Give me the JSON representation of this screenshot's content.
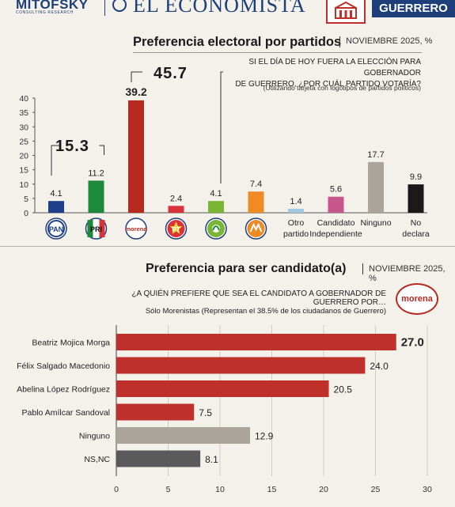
{
  "header": {
    "left_brand": "MITOFSKY",
    "left_brand_sub": "CONSULTING RESEARCH",
    "center_brand": "EL ECONOMISTA",
    "region": "GUERRERO",
    "brand_color": "#1d3f7a",
    "accent_color": "#c0302a"
  },
  "chart1": {
    "title": "Preferencia electoral por partidos",
    "subtitle": "NOVIEMBRE 2025, %",
    "question_line1": "SI EL DÍA DE HOY FUERA LA ELECCIÓN PARA GOBERNADOR",
    "question_line2": "DE GUERRERO, ¿POR CUÁL PARTIDO VOTARÍA?",
    "note": "(Utilizando tarjeta con logotipos de partidos políticos)",
    "alliance_left_total": "15.3",
    "alliance_right_total": "45.7"
  },
  "chart2": {
    "title": "Preferencia para ser candidato(a)",
    "subtitle": "NOVIEMBRE 2025, %",
    "question": "¿A QUIÉN PREFIERE QUE SEA EL CANDIDATO A GOBERNADOR DE GUERRERO POR…",
    "note": "Sólo Morenistas (Representan el 38.5% de los ciudadanos de Guerrero)",
    "party_logo_text": "morena"
  },
  "chart_data": [
    {
      "type": "bar",
      "orientation": "vertical",
      "title": "Preferencia electoral por partidos",
      "ylim": [
        0,
        40
      ],
      "yticks": [
        0,
        5,
        10,
        15,
        20,
        25,
        30,
        35,
        40
      ],
      "grid": false,
      "categories": [
        {
          "label": "PAN",
          "logo": "pan-logo",
          "value": 4.1,
          "color": "#1f3f8c"
        },
        {
          "label": "PRI",
          "logo": "pri-logo",
          "value": 11.2,
          "color": "#1c8a3a"
        },
        {
          "label": "morena",
          "logo": "morena-logo",
          "value": 39.2,
          "color": "#b5291f"
        },
        {
          "label": "PT",
          "logo": "pt-logo",
          "value": 2.4,
          "color": "#d8323a"
        },
        {
          "label": "PVEM",
          "logo": "pvem-logo",
          "value": 4.1,
          "color": "#7ab534"
        },
        {
          "label": "MC",
          "logo": "mc-logo",
          "value": 7.4,
          "color": "#f08a24"
        },
        {
          "label": "Otro partido",
          "value": 1.4,
          "color": "#9ec9e0"
        },
        {
          "label": "Candidato Independiente",
          "value": 5.6,
          "color": "#c9568b"
        },
        {
          "label": "Ninguno",
          "value": 17.7,
          "color": "#aaa49a"
        },
        {
          "label": "No declara",
          "value": 9.9,
          "color": "#1a1a1a"
        }
      ]
    },
    {
      "type": "bar",
      "orientation": "horizontal",
      "title": "Preferencia para ser candidato(a)",
      "xlim": [
        0,
        30
      ],
      "xticks": [
        0,
        5,
        10,
        15,
        20,
        25,
        30
      ],
      "grid": true,
      "categories": [
        {
          "label": "Beatriz Mojica Morga",
          "value": 27.0,
          "value_label": "27.0",
          "color": "#c0302a",
          "bold": true
        },
        {
          "label": "Félix Salgado Macedonio",
          "value": 24.0,
          "value_label": "24.0",
          "color": "#c0302a"
        },
        {
          "label": "Abelina López Rodríguez",
          "value": 20.5,
          "value_label": "20.5",
          "color": "#c0302a"
        },
        {
          "label": "Pablo Amílcar Sandoval",
          "value": 7.5,
          "value_label": "7.5",
          "color": "#c0302a"
        },
        {
          "label": "Ninguno",
          "value": 12.9,
          "value_label": "12.9",
          "color": "#aaa49a"
        },
        {
          "label": "NS,NC",
          "value": 8.1,
          "value_label": "8.1",
          "color": "#5a5a5a"
        }
      ]
    }
  ]
}
